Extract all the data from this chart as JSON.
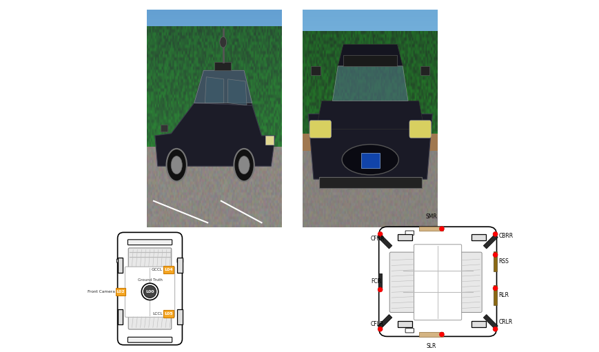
{
  "bg_color": "#ffffff",
  "fig_width": 8.7,
  "fig_height": 5.11,
  "dpi": 100,
  "photo1_bounds": [
    0.245,
    0.355,
    0.225,
    0.618
  ],
  "photo2_bounds": [
    0.505,
    0.355,
    0.225,
    0.618
  ],
  "diag1_bounds": [
    0.03,
    0.01,
    0.44,
    0.34
  ],
  "diag2_bounds": [
    0.48,
    0.01,
    0.5,
    0.38
  ],
  "orange_color": "#F5A623",
  "orange_edge": "#cc7a00",
  "dark_sensor_color": "#2a2a2a",
  "brown_sensor_color": "#8B6914",
  "light_brown_color": "#D4B483",
  "red_dot_color": "#FF0000"
}
